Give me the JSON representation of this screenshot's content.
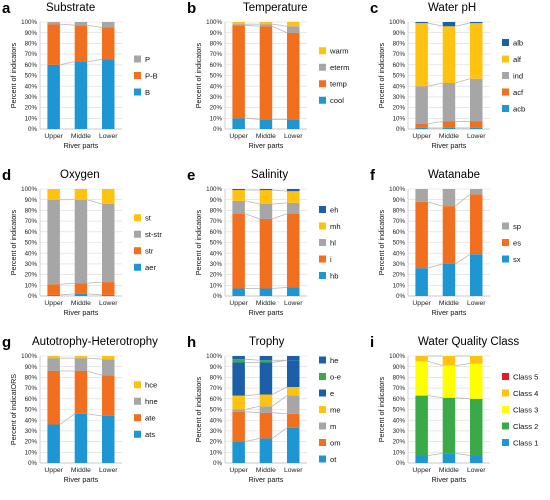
{
  "colors": {
    "blue": "#1f96d4",
    "orange": "#f26f1f",
    "gray": "#a6a6a6",
    "yellow": "#ffc20e",
    "darkblue": "#1c5fa9",
    "green": "#3aaa48",
    "brightyellow": "#ffff00",
    "red": "#e31b23",
    "connector": "#b8b8b8"
  },
  "chart_data": [
    {
      "id": "a",
      "title": "Substrate",
      "type": "bar",
      "stacked": true,
      "categories": [
        "Upper",
        "Middle",
        "Lower"
      ],
      "ylabel": "Percent of indicators",
      "xlabel": "River parts",
      "ylim": [
        0,
        100
      ],
      "yticks": [
        "0%",
        "10%",
        "20%",
        "30%",
        "40%",
        "50%",
        "60%",
        "70%",
        "80%",
        "90%",
        "100%"
      ],
      "series": [
        {
          "name": "B",
          "color": "#1f96d4",
          "values": [
            60,
            63,
            65
          ]
        },
        {
          "name": "P-B",
          "color": "#f26f1f",
          "values": [
            38,
            34,
            30
          ]
        },
        {
          "name": "P",
          "color": "#a6a6a6",
          "values": [
            2,
            3,
            5
          ]
        }
      ]
    },
    {
      "id": "b",
      "title": "Temperature",
      "type": "bar",
      "stacked": true,
      "categories": [
        "Upper",
        "Middle",
        "Lower"
      ],
      "ylabel": "Percent of indicators",
      "xlabel": "River parts",
      "ylim": [
        0,
        100
      ],
      "yticks": [
        "0%",
        "10%",
        "20%",
        "30%",
        "40%",
        "50%",
        "60%",
        "70%",
        "80%",
        "90%",
        "100%"
      ],
      "series": [
        {
          "name": "cool",
          "color": "#1f96d4",
          "values": [
            10,
            9,
            9
          ]
        },
        {
          "name": "temp",
          "color": "#f26f1f",
          "values": [
            87,
            87,
            81
          ]
        },
        {
          "name": "eterm",
          "color": "#a6a6a6",
          "values": [
            1,
            2,
            6
          ]
        },
        {
          "name": "warm",
          "color": "#ffc20e",
          "values": [
            2,
            2,
            4
          ]
        }
      ]
    },
    {
      "id": "c",
      "title": "Water pH",
      "type": "bar",
      "stacked": true,
      "categories": [
        "Upper",
        "Middle",
        "Lower"
      ],
      "ylabel": "Percent of indicators",
      "xlabel": "River parts",
      "ylim": [
        0,
        100
      ],
      "yticks": [
        "0%",
        "10%",
        "20%",
        "30%",
        "40%",
        "50%",
        "60%",
        "70%",
        "80%",
        "90%",
        "100%"
      ],
      "series": [
        {
          "name": "acb",
          "color": "#1f96d4",
          "values": [
            1,
            1,
            1
          ]
        },
        {
          "name": "acf",
          "color": "#f26f1f",
          "values": [
            4,
            6,
            6
          ]
        },
        {
          "name": "ind",
          "color": "#a6a6a6",
          "values": [
            35,
            36,
            40
          ]
        },
        {
          "name": "alf",
          "color": "#ffc20e",
          "values": [
            59,
            53,
            52
          ]
        },
        {
          "name": "alb",
          "color": "#1c5fa9",
          "values": [
            1,
            4,
            1
          ]
        }
      ]
    },
    {
      "id": "d",
      "title": "Oxygen",
      "type": "bar",
      "stacked": true,
      "categories": [
        "Upper",
        "Middle",
        "Lower"
      ],
      "ylabel": "Percent of indicators",
      "xlabel": "River parts",
      "ylim": [
        0,
        100
      ],
      "yticks": [
        "0%",
        "10%",
        "20%",
        "30%",
        "40%",
        "50%",
        "60%",
        "70%",
        "80%",
        "90%",
        "100%"
      ],
      "series": [
        {
          "name": "aer",
          "color": "#1f96d4",
          "values": [
            1,
            2,
            1
          ]
        },
        {
          "name": "str",
          "color": "#f26f1f",
          "values": [
            10,
            10,
            12
          ]
        },
        {
          "name": "st-str",
          "color": "#a6a6a6",
          "values": [
            79,
            78,
            73
          ]
        },
        {
          "name": "st",
          "color": "#ffc20e",
          "values": [
            10,
            10,
            14
          ]
        }
      ]
    },
    {
      "id": "e",
      "title": "Salinity",
      "type": "bar",
      "stacked": true,
      "categories": [
        "Upper",
        "Middle",
        "Lower"
      ],
      "ylabel": "Percent of indicators",
      "xlabel": "River parts",
      "ylim": [
        0,
        100
      ],
      "yticks": [
        "0%",
        "10%",
        "20%",
        "30%",
        "40%",
        "50%",
        "60%",
        "70%",
        "80%",
        "90%",
        "100%"
      ],
      "series": [
        {
          "name": "hb",
          "color": "#1f96d4",
          "values": [
            7,
            7,
            8
          ]
        },
        {
          "name": "i",
          "color": "#f26f1f",
          "values": [
            70,
            65,
            69
          ]
        },
        {
          "name": "hl",
          "color": "#a6a6a6",
          "values": [
            12,
            14,
            10
          ]
        },
        {
          "name": "mh",
          "color": "#ffc20e",
          "values": [
            10,
            13,
            11
          ]
        },
        {
          "name": "eh",
          "color": "#1c5fa9",
          "values": [
            1,
            1,
            2
          ]
        }
      ]
    },
    {
      "id": "f",
      "title": "Watanabe",
      "type": "bar",
      "stacked": true,
      "categories": [
        "Upper",
        "Middle",
        "Lower"
      ],
      "ylabel": "Percent of indicators",
      "xlabel": "River parts",
      "ylim": [
        0,
        100
      ],
      "yticks": [
        "0%",
        "10%",
        "20%",
        "30%",
        "40%",
        "50%",
        "60%",
        "70%",
        "80%",
        "90%",
        "100%"
      ],
      "series": [
        {
          "name": "sx",
          "color": "#1f96d4",
          "values": [
            26,
            30,
            39
          ]
        },
        {
          "name": "es",
          "color": "#f26f1f",
          "values": [
            62,
            54,
            56
          ]
        },
        {
          "name": "sp",
          "color": "#a6a6a6",
          "values": [
            12,
            16,
            5
          ]
        }
      ]
    },
    {
      "id": "g",
      "title": "Autotrophy-Heterotrophy",
      "type": "bar",
      "stacked": true,
      "categories": [
        "Upper",
        "Middle",
        "Lower"
      ],
      "ylabel": "Percent of indicatORS",
      "xlabel": "River parts",
      "ylim": [
        0,
        100
      ],
      "yticks": [
        "0%",
        "10%",
        "20%",
        "30%",
        "40%",
        "50%",
        "60%",
        "70%",
        "80%",
        "90%",
        "100%"
      ],
      "series": [
        {
          "name": "ats",
          "color": "#1f96d4",
          "values": [
            36,
            46,
            44
          ]
        },
        {
          "name": "ate",
          "color": "#f26f1f",
          "values": [
            50,
            40,
            38
          ]
        },
        {
          "name": "hne",
          "color": "#a6a6a6",
          "values": [
            12,
            12,
            15
          ]
        },
        {
          "name": "hce",
          "color": "#ffc20e",
          "values": [
            2,
            2,
            3
          ]
        }
      ]
    },
    {
      "id": "h",
      "title": "Trophy",
      "type": "bar",
      "stacked": true,
      "categories": [
        "Upper",
        "Middle",
        "Lower"
      ],
      "ylabel": "Percent of indicators",
      "xlabel": "River parts",
      "ylim": [
        0,
        100
      ],
      "yticks": [
        "0%",
        "10%",
        "20%",
        "30%",
        "40%",
        "50%",
        "60%",
        "70%",
        "80%",
        "90%",
        "100%"
      ],
      "series": [
        {
          "name": "ot",
          "color": "#1f96d4",
          "values": [
            20,
            23,
            33
          ]
        },
        {
          "name": "om",
          "color": "#f26f1f",
          "values": [
            28,
            24,
            13
          ]
        },
        {
          "name": "m",
          "color": "#a6a6a6",
          "values": [
            2,
            6,
            17
          ]
        },
        {
          "name": "me",
          "color": "#ffc20e",
          "values": [
            13,
            11,
            8
          ]
        },
        {
          "name": "e",
          "color": "#1c5fa9",
          "values": [
            31,
            30,
            25
          ]
        },
        {
          "name": "o-e",
          "color": "#3aaa48",
          "values": [
            3,
            2,
            0
          ]
        },
        {
          "name": "he",
          "color": "#1c5fa9",
          "values": [
            3,
            4,
            4
          ]
        }
      ]
    },
    {
      "id": "i",
      "title": "Water Quality Class",
      "type": "bar",
      "stacked": true,
      "categories": [
        "Upper",
        "Middle",
        "Lower"
      ],
      "ylabel": "Percent of indicators",
      "xlabel": "River parts",
      "ylim": [
        0,
        100
      ],
      "yticks": [
        "0%",
        "10%",
        "20%",
        "30%",
        "40%",
        "50%",
        "60%",
        "70%",
        "80%",
        "90%",
        "100%"
      ],
      "series": [
        {
          "name": "Class 1",
          "color": "#1f96d4",
          "values": [
            7,
            9,
            7
          ]
        },
        {
          "name": "Class 2",
          "color": "#3aaa48",
          "values": [
            56,
            52,
            53
          ]
        },
        {
          "name": "Class 3",
          "color": "#ffff00",
          "values": [
            32,
            30,
            33
          ]
        },
        {
          "name": "Class 4",
          "color": "#ffc20e",
          "values": [
            5,
            9,
            7
          ]
        },
        {
          "name": "Class 5",
          "color": "#e31b23",
          "values": [
            0,
            0,
            0
          ]
        }
      ]
    }
  ]
}
